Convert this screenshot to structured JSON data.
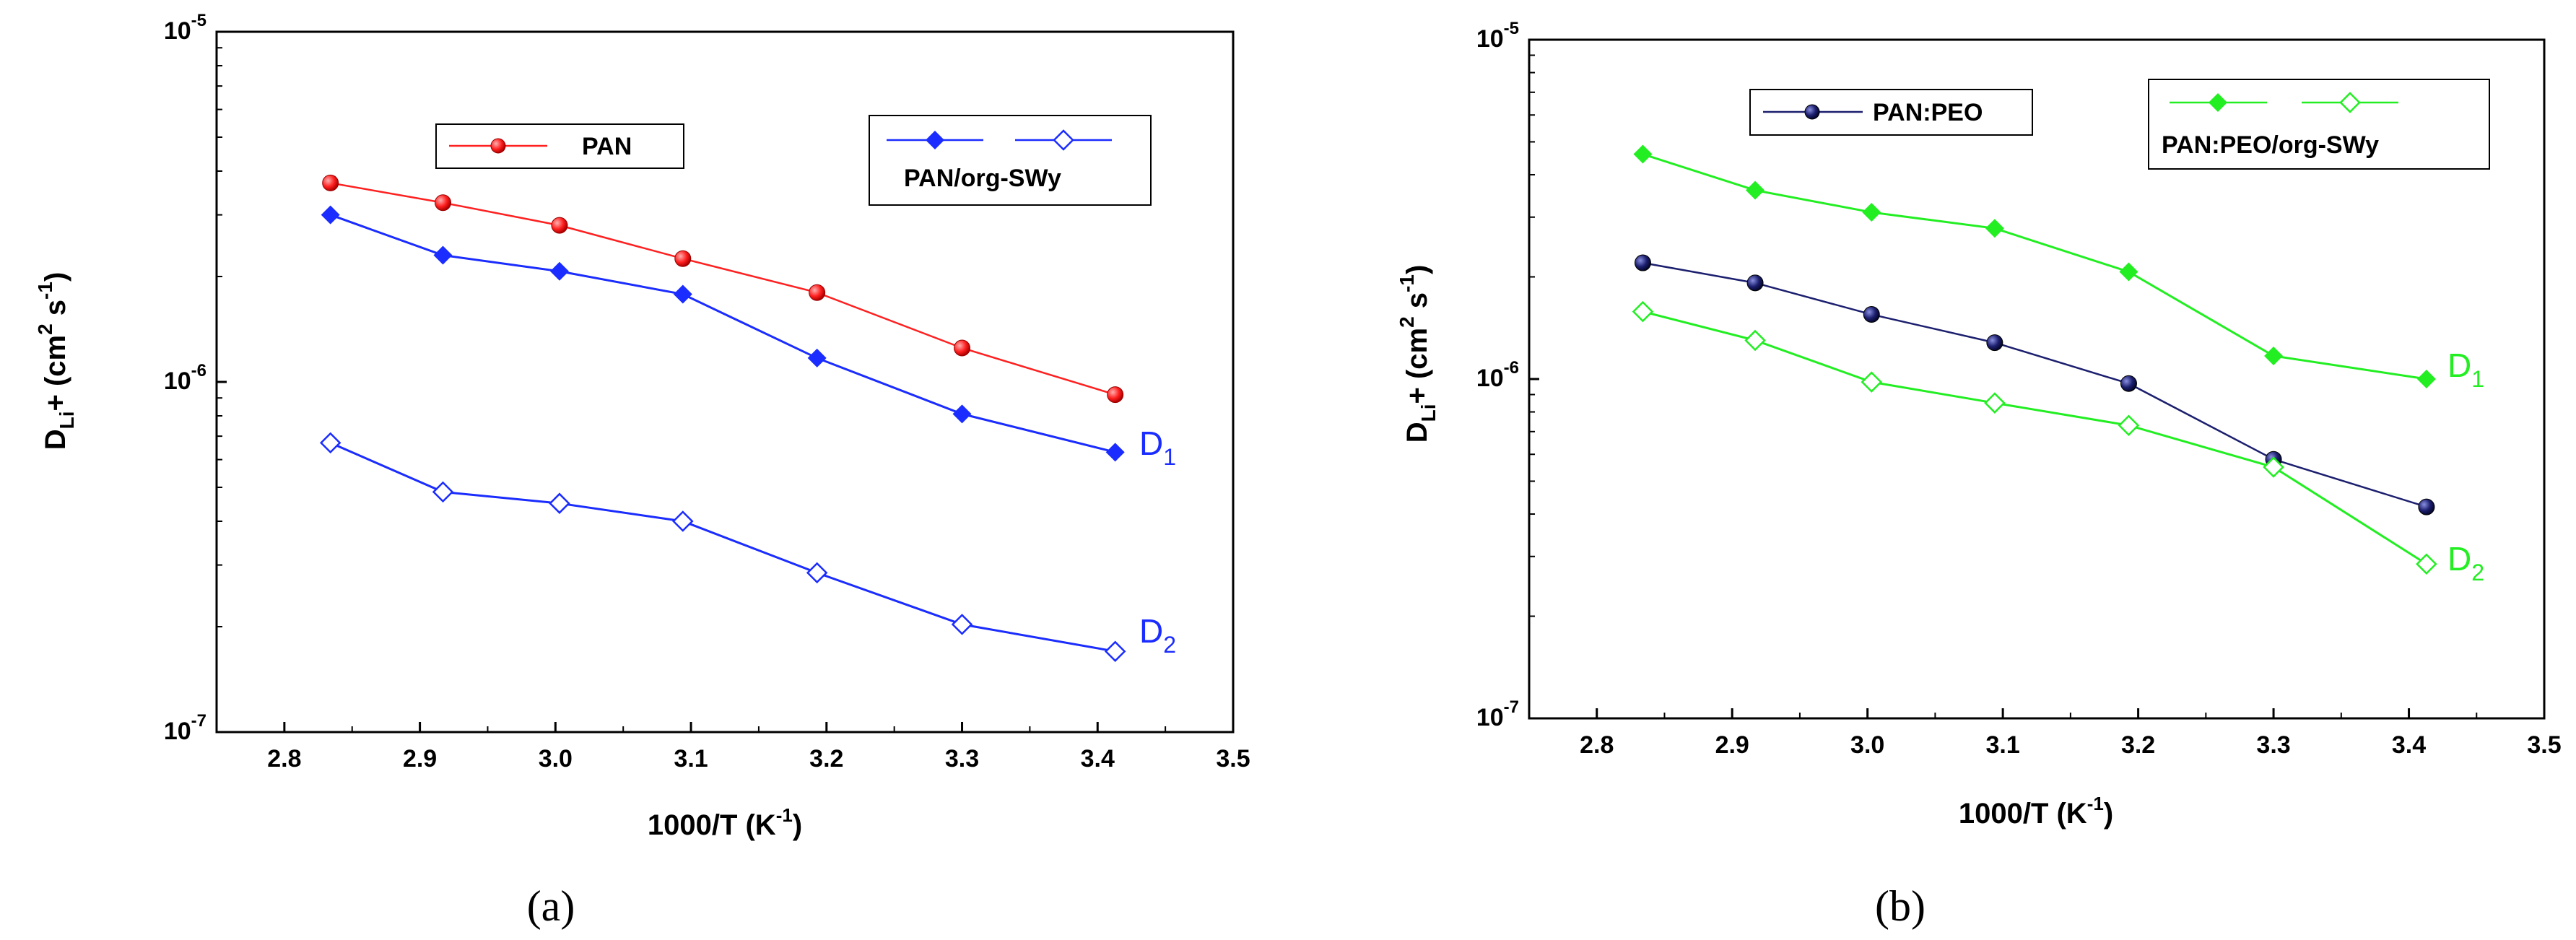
{
  "chart_data": [
    {
      "type": "line",
      "panel_label": "(a)",
      "xlabel": "1000/T (K",
      "xlabel_sup": "-1",
      "xlabel_end": ")",
      "ylabel": "D",
      "ylabel_sub": "Li",
      "ylabel_plus": "+ (cm",
      "ylabel_sup2": "2",
      "ylabel_s": " s",
      "ylabel_supm1": "-1",
      "ylabel_end": ")",
      "xlim": [
        2.75,
        3.5
      ],
      "xticks": [
        "2.8",
        "2.9",
        "3.0",
        "3.1",
        "3.2",
        "3.3",
        "3.4",
        "3.5"
      ],
      "yscale": "log",
      "ylim": [
        1e-07,
        1e-05
      ],
      "yticks": [
        {
          "base": "10",
          "exp": "-7"
        },
        {
          "base": "10",
          "exp": "-6"
        },
        {
          "base": "10",
          "exp": "-5"
        }
      ],
      "legend": [
        {
          "label": "PAN"
        },
        {
          "label": "PAN/org-SWy"
        }
      ],
      "series": [
        {
          "name": "PAN",
          "color": "#ff2020",
          "marker": "sphere",
          "x": [
            2.834,
            2.917,
            3.003,
            3.094,
            3.193,
            3.3,
            3.413
          ],
          "y": [
            3.7e-06,
            3.25e-06,
            2.8e-06,
            2.25e-06,
            1.8e-06,
            1.25e-06,
            9.2e-07
          ]
        },
        {
          "name": "PAN/org-SWy D1",
          "color": "#1a2cff",
          "marker": "diamond-filled",
          "x": [
            2.834,
            2.917,
            3.003,
            3.094,
            3.193,
            3.3,
            3.413
          ],
          "y": [
            3e-06,
            2.3e-06,
            2.07e-06,
            1.78e-06,
            1.17e-06,
            8.1e-07,
            6.3e-07
          ]
        },
        {
          "name": "PAN/org-SWy D2",
          "color": "#1a2cff",
          "marker": "diamond-open",
          "x": [
            2.834,
            2.917,
            3.003,
            3.094,
            3.193,
            3.3,
            3.413
          ],
          "y": [
            6.7e-07,
            4.85e-07,
            4.5e-07,
            4e-07,
            2.85e-07,
            2.03e-07,
            1.7e-07
          ]
        }
      ],
      "annotations": [
        {
          "text": "D",
          "sub": "1",
          "color": "#1a2cff"
        },
        {
          "text": "D",
          "sub": "2",
          "color": "#1a2cff"
        }
      ]
    },
    {
      "type": "line",
      "panel_label": "(b)",
      "xlabel": "1000/T (K",
      "xlabel_sup": "-1",
      "xlabel_end": ")",
      "ylabel": "D",
      "ylabel_sub": "Li",
      "ylabel_plus": "+ (cm",
      "ylabel_sup2": "2",
      "ylabel_s": " s",
      "ylabel_supm1": "-1",
      "ylabel_end": ")",
      "xlim": [
        2.75,
        3.5
      ],
      "xticks": [
        "2.8",
        "2.9",
        "3.0",
        "3.1",
        "3.2",
        "3.3",
        "3.4",
        "3.5"
      ],
      "yscale": "log",
      "ylim": [
        1e-07,
        1e-05
      ],
      "yticks": [
        {
          "base": "10",
          "exp": "-7"
        },
        {
          "base": "10",
          "exp": "-6"
        },
        {
          "base": "10",
          "exp": "-5"
        }
      ],
      "legend": [
        {
          "label": "PAN:PEO"
        },
        {
          "label": "PAN:PEO/org-SWy"
        }
      ],
      "series": [
        {
          "name": "PAN:PEO",
          "color": "#1c1f6e",
          "marker": "sphere",
          "x": [
            2.834,
            2.917,
            3.003,
            3.094,
            3.193,
            3.3,
            3.413
          ],
          "y": [
            2.2e-06,
            1.92e-06,
            1.55e-06,
            1.28e-06,
            9.7e-07,
            5.8e-07,
            4.2e-07
          ]
        },
        {
          "name": "PAN:PEO/org-SWy D1",
          "color": "#22ee22",
          "marker": "diamond-filled",
          "x": [
            2.834,
            2.917,
            3.003,
            3.094,
            3.193,
            3.3,
            3.413
          ],
          "y": [
            4.6e-06,
            3.6e-06,
            3.1e-06,
            2.78e-06,
            2.07e-06,
            1.17e-06,
            1e-06
          ]
        },
        {
          "name": "PAN:PEO/org-SWy D2",
          "color": "#22ee22",
          "marker": "diamond-open",
          "x": [
            2.834,
            2.917,
            3.003,
            3.094,
            3.193,
            3.3,
            3.413
          ],
          "y": [
            1.58e-06,
            1.3e-06,
            9.8e-07,
            8.5e-07,
            7.3e-07,
            5.5e-07,
            2.85e-07
          ]
        }
      ],
      "annotations": [
        {
          "text": "D",
          "sub": "1",
          "color": "#22ee22"
        },
        {
          "text": "D",
          "sub": "2",
          "color": "#22ee22"
        }
      ]
    }
  ]
}
